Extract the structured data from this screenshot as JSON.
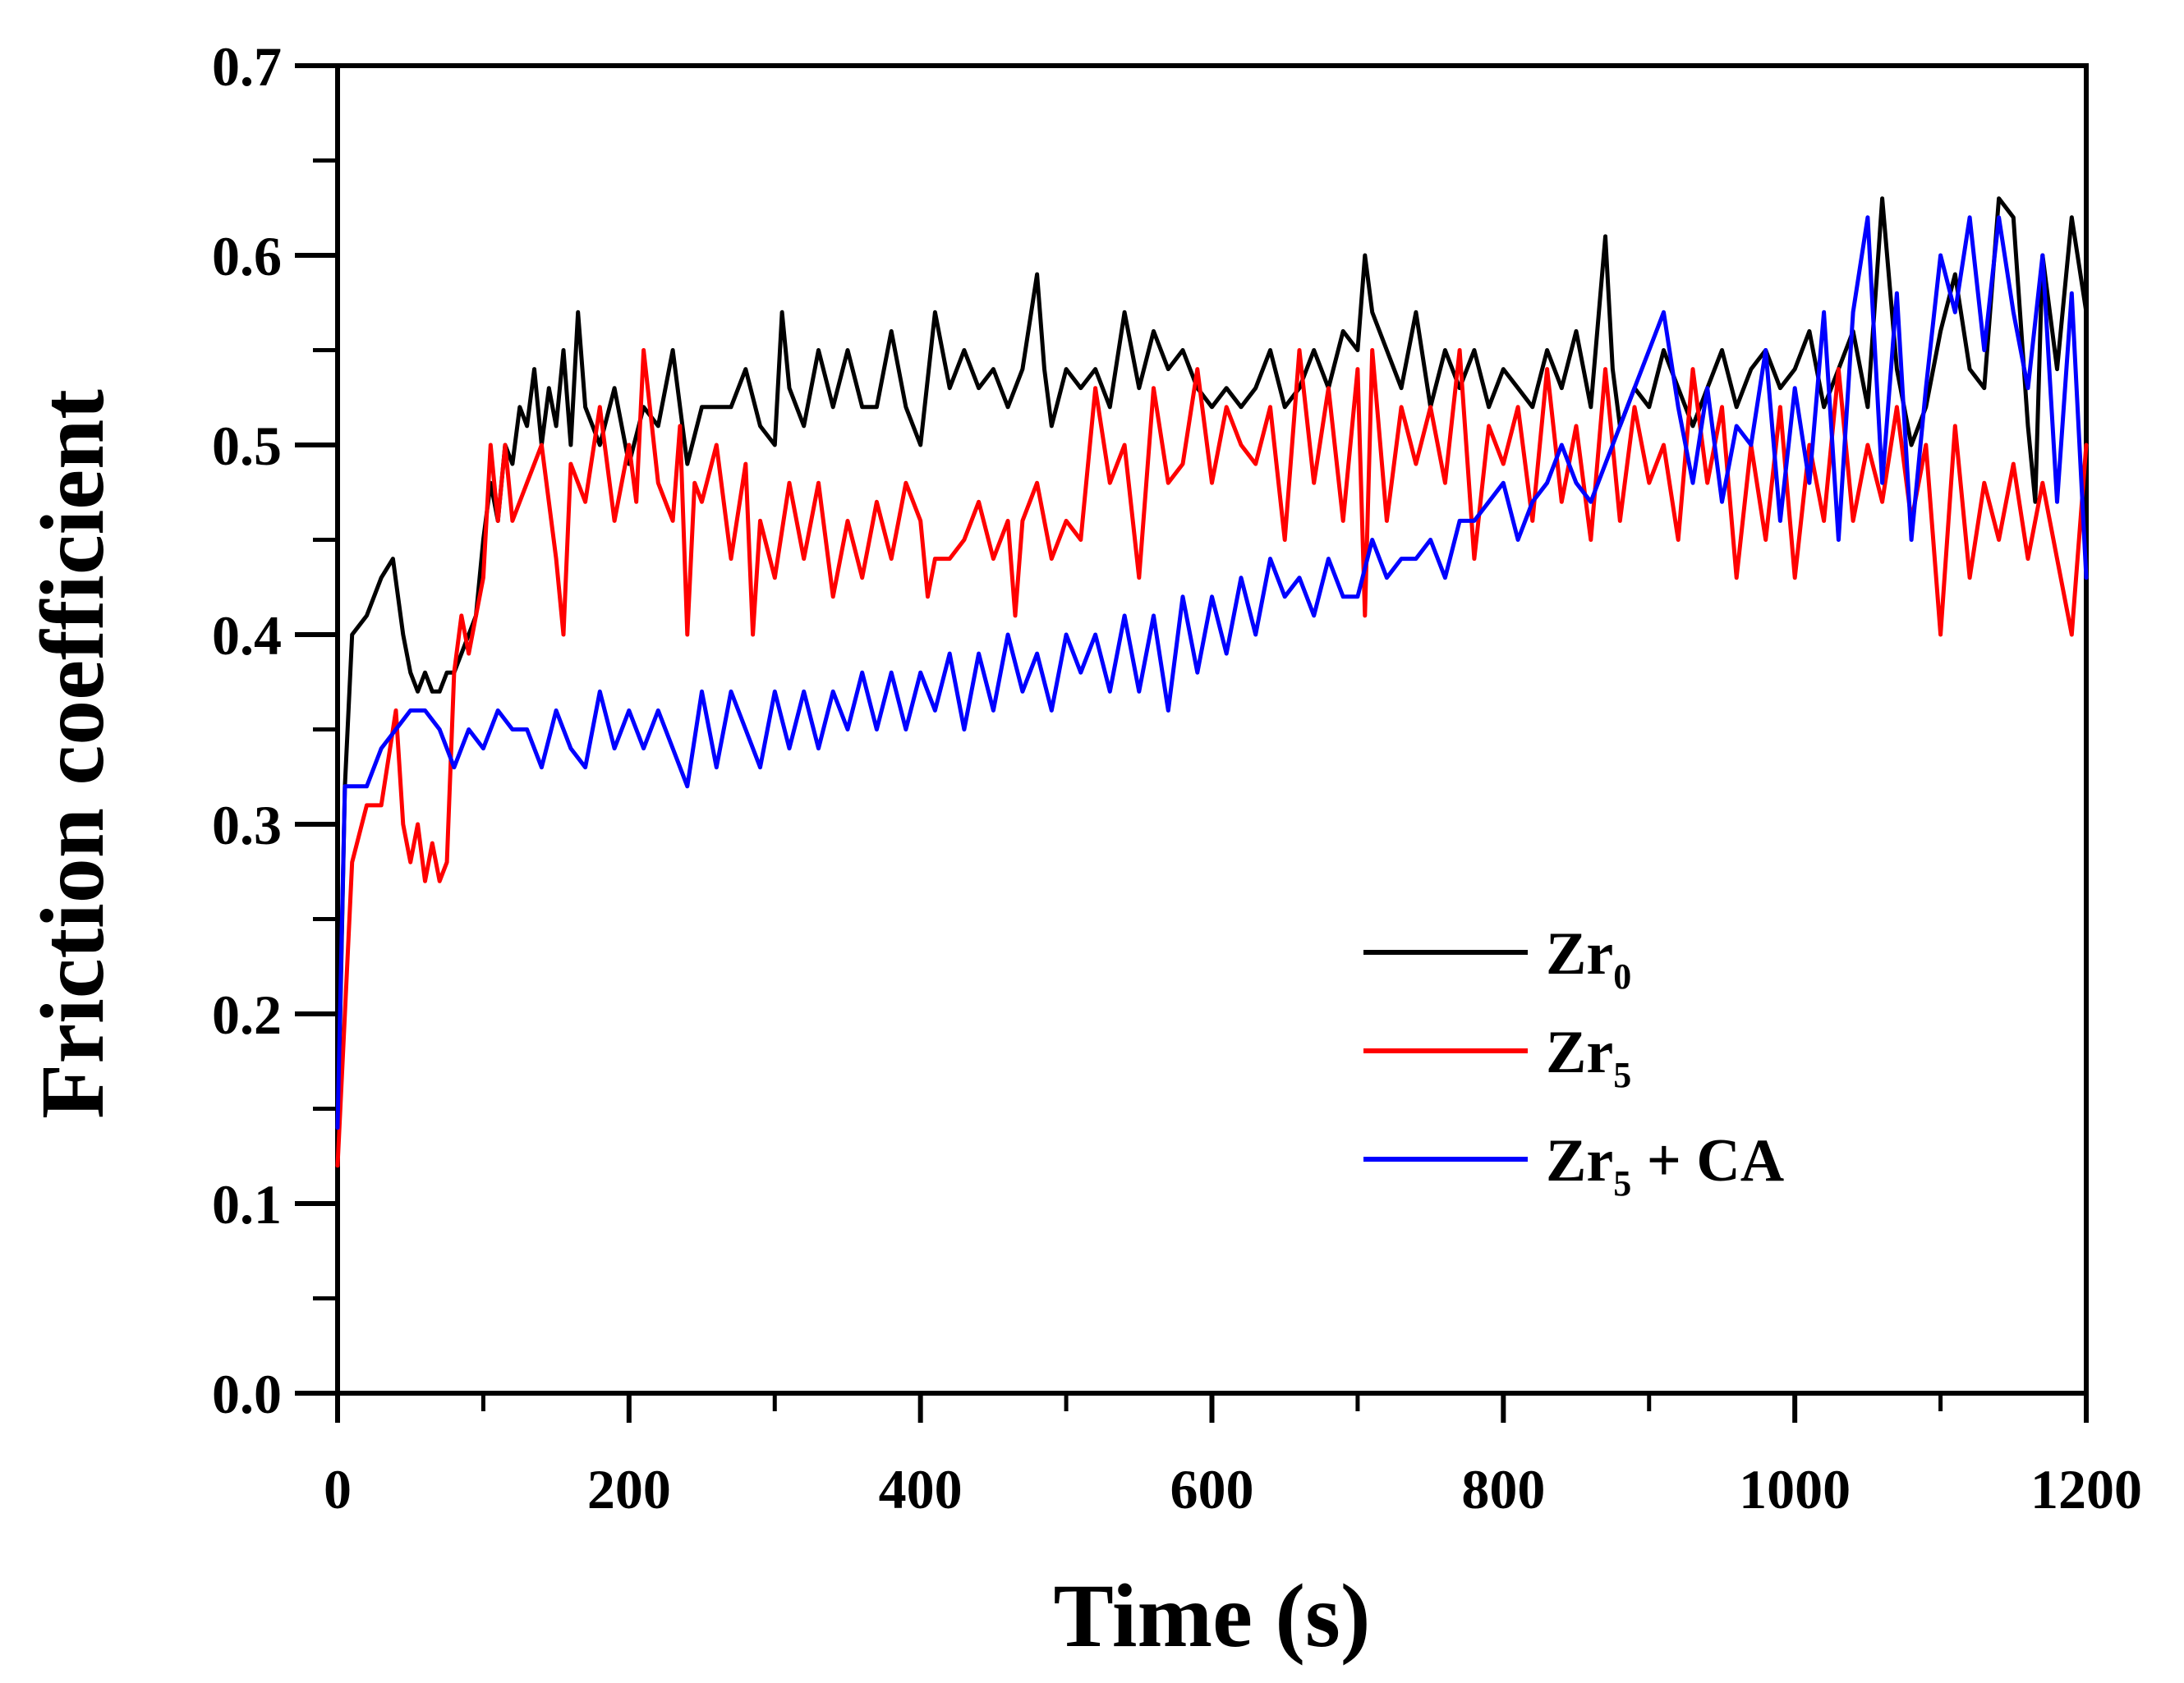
{
  "chart_data": {
    "type": "line",
    "title": "",
    "xlabel": "Time (s)",
    "ylabel": "Friction coefficient",
    "xlim": [
      0,
      1200
    ],
    "ylim": [
      0,
      0.7
    ],
    "x_ticks": [
      0,
      200,
      400,
      600,
      800,
      1000,
      1200
    ],
    "x_tick_labels": [
      "0",
      "200",
      "400",
      "600",
      "800",
      "1000",
      "1200"
    ],
    "y_ticks": [
      0,
      0.1,
      0.2,
      0.3,
      0.4,
      0.5,
      0.6,
      0.7
    ],
    "y_tick_labels": [
      "0.0",
      "0.1",
      "0.2",
      "0.3",
      "0.4",
      "0.5",
      "0.6",
      "0.7"
    ],
    "x_minor_step": 100,
    "y_minor_step": 0.05,
    "grid": false,
    "legend_position": "center-right",
    "series": [
      {
        "name": "Zr0",
        "label_main": "Zr",
        "label_sub": "0",
        "label_suffix": "",
        "color": "#000000",
        "x": [
          0,
          5,
          10,
          20,
          30,
          38,
          45,
          50,
          55,
          60,
          65,
          70,
          75,
          80,
          85,
          90,
          95,
          100,
          105,
          110,
          115,
          120,
          125,
          130,
          135,
          140,
          145,
          150,
          155,
          160,
          165,
          170,
          175,
          180,
          190,
          200,
          210,
          220,
          230,
          240,
          250,
          260,
          270,
          280,
          290,
          300,
          305,
          310,
          320,
          330,
          340,
          350,
          360,
          370,
          380,
          390,
          400,
          410,
          420,
          430,
          440,
          450,
          460,
          470,
          480,
          485,
          490,
          500,
          510,
          520,
          530,
          540,
          550,
          560,
          570,
          580,
          590,
          600,
          610,
          620,
          630,
          640,
          650,
          660,
          670,
          680,
          690,
          700,
          705,
          710,
          720,
          730,
          740,
          750,
          760,
          770,
          780,
          790,
          800,
          810,
          820,
          830,
          840,
          850,
          860,
          870,
          875,
          880,
          890,
          900,
          910,
          920,
          930,
          940,
          950,
          960,
          970,
          980,
          990,
          1000,
          1010,
          1020,
          1030,
          1040,
          1050,
          1060,
          1070,
          1080,
          1090,
          1100,
          1110,
          1120,
          1130,
          1140,
          1150,
          1160,
          1165,
          1170,
          1180,
          1190,
          1200
        ],
        "values": [
          0.13,
          0.32,
          0.4,
          0.41,
          0.43,
          0.44,
          0.4,
          0.38,
          0.37,
          0.38,
          0.37,
          0.37,
          0.38,
          0.38,
          0.39,
          0.4,
          0.41,
          0.45,
          0.48,
          0.46,
          0.5,
          0.49,
          0.52,
          0.51,
          0.54,
          0.5,
          0.53,
          0.51,
          0.55,
          0.5,
          0.57,
          0.52,
          0.51,
          0.5,
          0.53,
          0.49,
          0.52,
          0.51,
          0.55,
          0.49,
          0.52,
          0.52,
          0.52,
          0.54,
          0.51,
          0.5,
          0.57,
          0.53,
          0.51,
          0.55,
          0.52,
          0.55,
          0.52,
          0.52,
          0.56,
          0.52,
          0.5,
          0.57,
          0.53,
          0.55,
          0.53,
          0.54,
          0.52,
          0.54,
          0.59,
          0.54,
          0.51,
          0.54,
          0.53,
          0.54,
          0.52,
          0.57,
          0.53,
          0.56,
          0.54,
          0.55,
          0.53,
          0.52,
          0.53,
          0.52,
          0.53,
          0.55,
          0.52,
          0.53,
          0.55,
          0.53,
          0.56,
          0.55,
          0.6,
          0.57,
          0.55,
          0.53,
          0.57,
          0.52,
          0.55,
          0.53,
          0.55,
          0.52,
          0.54,
          0.53,
          0.52,
          0.55,
          0.53,
          0.56,
          0.52,
          0.61,
          0.54,
          0.51,
          0.53,
          0.52,
          0.55,
          0.53,
          0.51,
          0.53,
          0.55,
          0.52,
          0.54,
          0.55,
          0.53,
          0.54,
          0.56,
          0.52,
          0.54,
          0.56,
          0.52,
          0.63,
          0.54,
          0.5,
          0.52,
          0.56,
          0.59,
          0.54,
          0.53,
          0.63,
          0.62,
          0.51,
          0.47,
          0.6,
          0.54,
          0.62,
          0.57
        ]
      },
      {
        "name": "Zr5",
        "label_main": "Zr",
        "label_sub": "5",
        "label_suffix": "",
        "color": "#ff0000",
        "x": [
          0,
          5,
          10,
          20,
          30,
          40,
          45,
          50,
          55,
          60,
          65,
          70,
          75,
          80,
          85,
          90,
          95,
          100,
          105,
          110,
          115,
          120,
          130,
          140,
          150,
          155,
          160,
          170,
          180,
          190,
          200,
          205,
          210,
          220,
          230,
          235,
          240,
          245,
          250,
          260,
          270,
          280,
          285,
          290,
          300,
          310,
          320,
          330,
          340,
          350,
          360,
          370,
          380,
          390,
          400,
          405,
          410,
          420,
          430,
          440,
          450,
          460,
          465,
          470,
          480,
          490,
          500,
          510,
          520,
          530,
          540,
          550,
          560,
          570,
          580,
          590,
          600,
          610,
          620,
          630,
          640,
          650,
          660,
          670,
          680,
          690,
          700,
          705,
          710,
          720,
          730,
          740,
          750,
          760,
          770,
          780,
          790,
          800,
          810,
          820,
          830,
          840,
          850,
          860,
          870,
          880,
          890,
          900,
          910,
          920,
          930,
          940,
          950,
          960,
          970,
          980,
          990,
          1000,
          1010,
          1020,
          1030,
          1040,
          1050,
          1060,
          1070,
          1080,
          1090,
          1100,
          1110,
          1120,
          1130,
          1140,
          1150,
          1160,
          1170,
          1180,
          1190,
          1200
        ],
        "values": [
          0.12,
          0.2,
          0.28,
          0.31,
          0.31,
          0.36,
          0.3,
          0.28,
          0.3,
          0.27,
          0.29,
          0.27,
          0.28,
          0.38,
          0.41,
          0.39,
          0.41,
          0.43,
          0.5,
          0.46,
          0.5,
          0.46,
          0.48,
          0.5,
          0.44,
          0.4,
          0.49,
          0.47,
          0.52,
          0.46,
          0.5,
          0.47,
          0.55,
          0.48,
          0.46,
          0.51,
          0.4,
          0.48,
          0.47,
          0.5,
          0.44,
          0.49,
          0.4,
          0.46,
          0.43,
          0.48,
          0.44,
          0.48,
          0.42,
          0.46,
          0.43,
          0.47,
          0.44,
          0.48,
          0.46,
          0.42,
          0.44,
          0.44,
          0.45,
          0.47,
          0.44,
          0.46,
          0.41,
          0.46,
          0.48,
          0.44,
          0.46,
          0.45,
          0.53,
          0.48,
          0.5,
          0.43,
          0.53,
          0.48,
          0.49,
          0.54,
          0.48,
          0.52,
          0.5,
          0.49,
          0.52,
          0.45,
          0.55,
          0.48,
          0.53,
          0.46,
          0.54,
          0.41,
          0.55,
          0.46,
          0.52,
          0.49,
          0.52,
          0.48,
          0.55,
          0.44,
          0.51,
          0.49,
          0.52,
          0.46,
          0.54,
          0.47,
          0.51,
          0.45,
          0.54,
          0.46,
          0.52,
          0.48,
          0.5,
          0.45,
          0.54,
          0.48,
          0.52,
          0.43,
          0.5,
          0.45,
          0.52,
          0.43,
          0.5,
          0.46,
          0.54,
          0.46,
          0.5,
          0.47,
          0.52,
          0.46,
          0.5,
          0.4,
          0.51,
          0.43,
          0.48,
          0.45,
          0.49,
          0.44,
          0.48,
          0.44,
          0.4,
          0.5
        ]
      },
      {
        "name": "Zr5 + CA",
        "label_main": "Zr",
        "label_sub": "5",
        "label_suffix": " + CA",
        "color": "#0000ff",
        "x": [
          0,
          5,
          10,
          20,
          30,
          40,
          50,
          60,
          70,
          80,
          90,
          100,
          110,
          120,
          130,
          140,
          150,
          160,
          170,
          180,
          190,
          200,
          210,
          220,
          230,
          240,
          250,
          260,
          270,
          280,
          290,
          300,
          310,
          320,
          330,
          340,
          350,
          360,
          370,
          380,
          390,
          400,
          410,
          420,
          430,
          440,
          450,
          460,
          470,
          480,
          490,
          500,
          510,
          520,
          530,
          540,
          550,
          560,
          570,
          580,
          590,
          600,
          610,
          620,
          630,
          640,
          650,
          660,
          670,
          680,
          690,
          700,
          710,
          720,
          730,
          740,
          750,
          760,
          770,
          780,
          790,
          800,
          810,
          820,
          830,
          840,
          850,
          860,
          870,
          880,
          890,
          900,
          910,
          920,
          930,
          940,
          950,
          960,
          970,
          980,
          990,
          1000,
          1010,
          1020,
          1030,
          1040,
          1050,
          1060,
          1070,
          1080,
          1090,
          1100,
          1110,
          1120,
          1130,
          1140,
          1150,
          1160,
          1170,
          1180,
          1190,
          1200
        ],
        "values": [
          0.14,
          0.32,
          0.32,
          0.32,
          0.34,
          0.35,
          0.36,
          0.36,
          0.35,
          0.33,
          0.35,
          0.34,
          0.36,
          0.35,
          0.35,
          0.33,
          0.36,
          0.34,
          0.33,
          0.37,
          0.34,
          0.36,
          0.34,
          0.36,
          0.34,
          0.32,
          0.37,
          0.33,
          0.37,
          0.35,
          0.33,
          0.37,
          0.34,
          0.37,
          0.34,
          0.37,
          0.35,
          0.38,
          0.35,
          0.38,
          0.35,
          0.38,
          0.36,
          0.39,
          0.35,
          0.39,
          0.36,
          0.4,
          0.37,
          0.39,
          0.36,
          0.4,
          0.38,
          0.4,
          0.37,
          0.41,
          0.37,
          0.41,
          0.36,
          0.42,
          0.38,
          0.42,
          0.39,
          0.43,
          0.4,
          0.44,
          0.42,
          0.43,
          0.41,
          0.44,
          0.42,
          0.42,
          0.45,
          0.43,
          0.44,
          0.44,
          0.45,
          0.43,
          0.46,
          0.46,
          0.47,
          0.48,
          0.45,
          0.47,
          0.48,
          0.5,
          0.48,
          0.47,
          0.49,
          0.51,
          0.53,
          0.55,
          0.57,
          0.52,
          0.48,
          0.53,
          0.47,
          0.51,
          0.5,
          0.55,
          0.46,
          0.53,
          0.48,
          0.57,
          0.45,
          0.57,
          0.62,
          0.48,
          0.58,
          0.45,
          0.53,
          0.6,
          0.57,
          0.62,
          0.55,
          0.62,
          0.57,
          0.53,
          0.6,
          0.47,
          0.58,
          0.43
        ]
      }
    ]
  }
}
